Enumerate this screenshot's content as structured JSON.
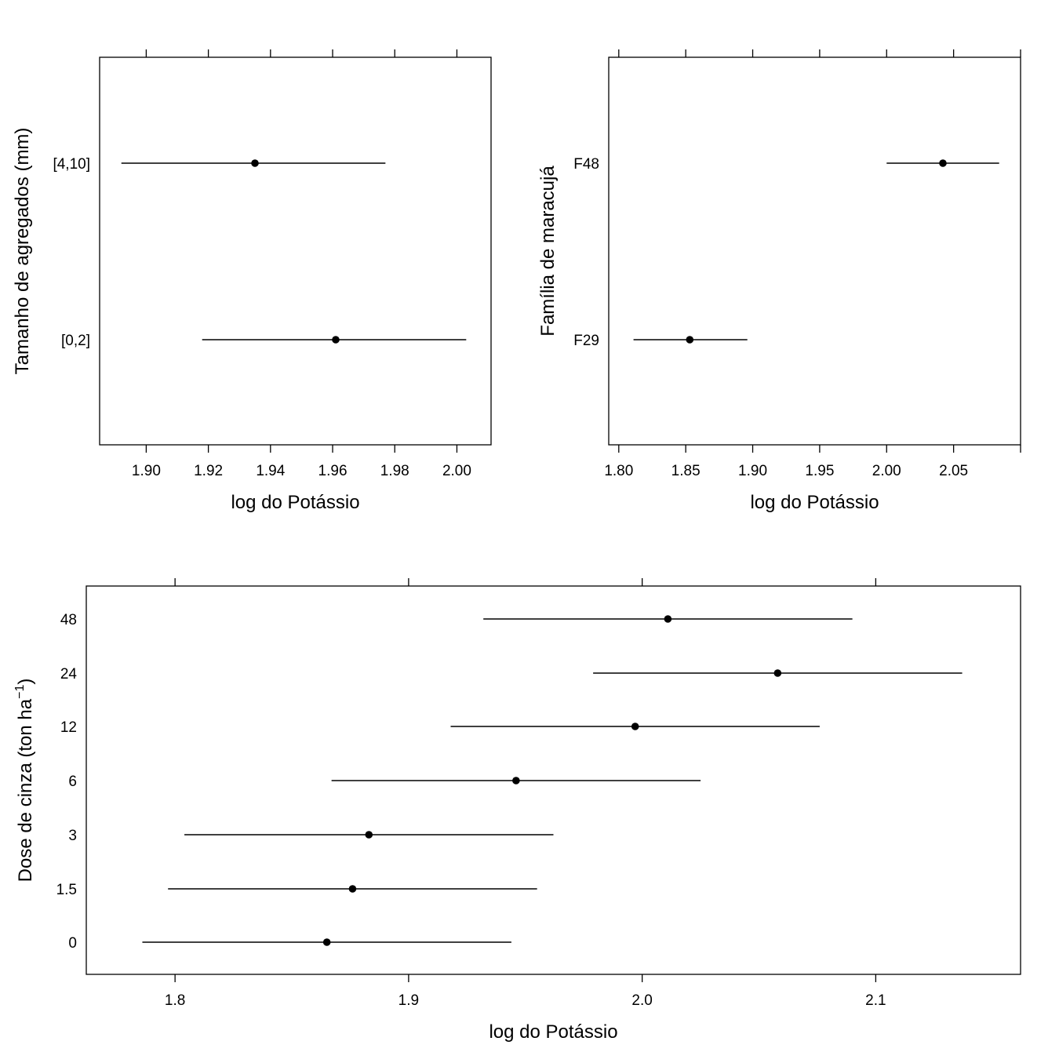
{
  "chart_data": [
    {
      "type": "dotplot-interval",
      "xlabel": "log do Potássio",
      "ylabel": "Tamanho de agregados (mm)",
      "xlim": [
        1.885,
        2.011
      ],
      "xticks": [
        1.9,
        1.92,
        1.94,
        1.96,
        1.98,
        2.0
      ],
      "xtick_labels": [
        "1.90",
        "1.92",
        "1.94",
        "1.96",
        "1.98",
        "2.00"
      ],
      "categories": [
        "[0,2]",
        "[4,10]"
      ],
      "estimates": [
        1.961,
        1.935
      ],
      "lower": [
        1.918,
        1.892
      ],
      "upper": [
        2.003,
        1.977
      ]
    },
    {
      "type": "dotplot-interval",
      "xlabel": "log do Potássio",
      "ylabel": "Família de maracujá",
      "xlim": [
        1.7925,
        2.1
      ],
      "xticks": [
        1.8,
        1.85,
        1.9,
        1.95,
        2.0,
        2.05,
        2.1
      ],
      "xtick_labels": [
        "1.80",
        "1.85",
        "1.90",
        "1.95",
        "2.00",
        "2.05",
        ""
      ],
      "categories": [
        "F29",
        "F48"
      ],
      "estimates": [
        1.853,
        2.042
      ],
      "lower": [
        1.811,
        2.0
      ],
      "upper": [
        1.896,
        2.084
      ]
    },
    {
      "type": "dotplot-interval",
      "xlabel": "log do Potássio",
      "ylabel": "Dose de cinza (ton ha",
      "ylabel_superscript": "−1",
      "ylabel_suffix": ")",
      "xlim": [
        1.762,
        2.162
      ],
      "xticks": [
        1.8,
        1.9,
        2.0,
        2.1
      ],
      "xtick_labels": [
        "1.8",
        "1.9",
        "2.0",
        "2.1"
      ],
      "categories": [
        "0",
        "1.5",
        "3",
        "6",
        "12",
        "24",
        "48"
      ],
      "estimates": [
        1.865,
        1.876,
        1.883,
        1.946,
        1.997,
        2.058,
        2.011
      ],
      "lower": [
        1.786,
        1.797,
        1.804,
        1.867,
        1.918,
        1.979,
        1.932
      ],
      "upper": [
        1.944,
        1.955,
        1.962,
        2.025,
        2.076,
        2.137,
        2.09
      ]
    }
  ]
}
